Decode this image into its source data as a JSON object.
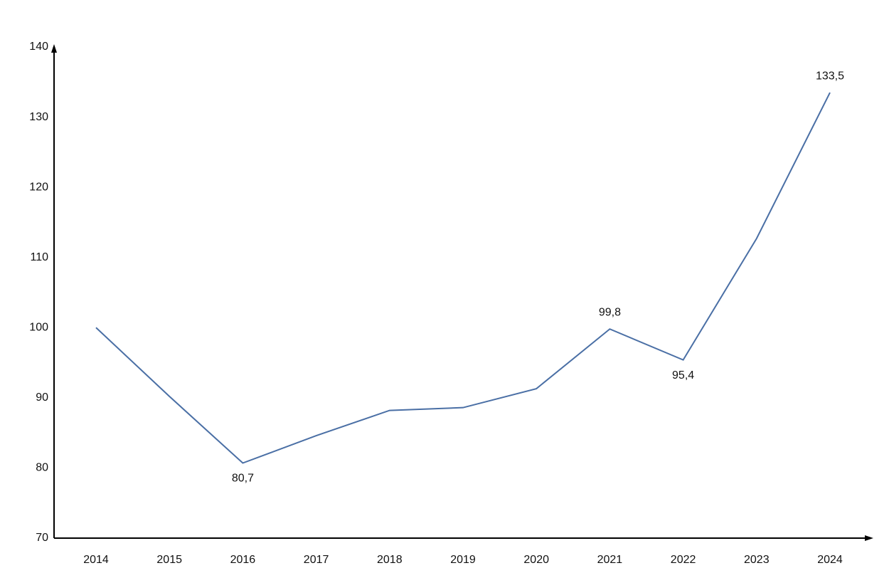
{
  "chart_data": {
    "type": "line",
    "categories": [
      "2014",
      "2015",
      "2016",
      "2017",
      "2018",
      "2019",
      "2020",
      "2021",
      "2022",
      "2023",
      "2024"
    ],
    "values": [
      100,
      90.2,
      80.7,
      84.6,
      88.2,
      88.6,
      91.3,
      99.8,
      95.4,
      112.7,
      133.5
    ],
    "value_labels": [
      null,
      null,
      "80,7",
      null,
      null,
      null,
      null,
      "99,8",
      "95,4",
      null,
      "133,5"
    ],
    "color": "#4a6fa5",
    "ylim": [
      70,
      140
    ],
    "yticks": [
      70,
      80,
      90,
      100,
      110,
      120,
      130,
      140
    ]
  }
}
